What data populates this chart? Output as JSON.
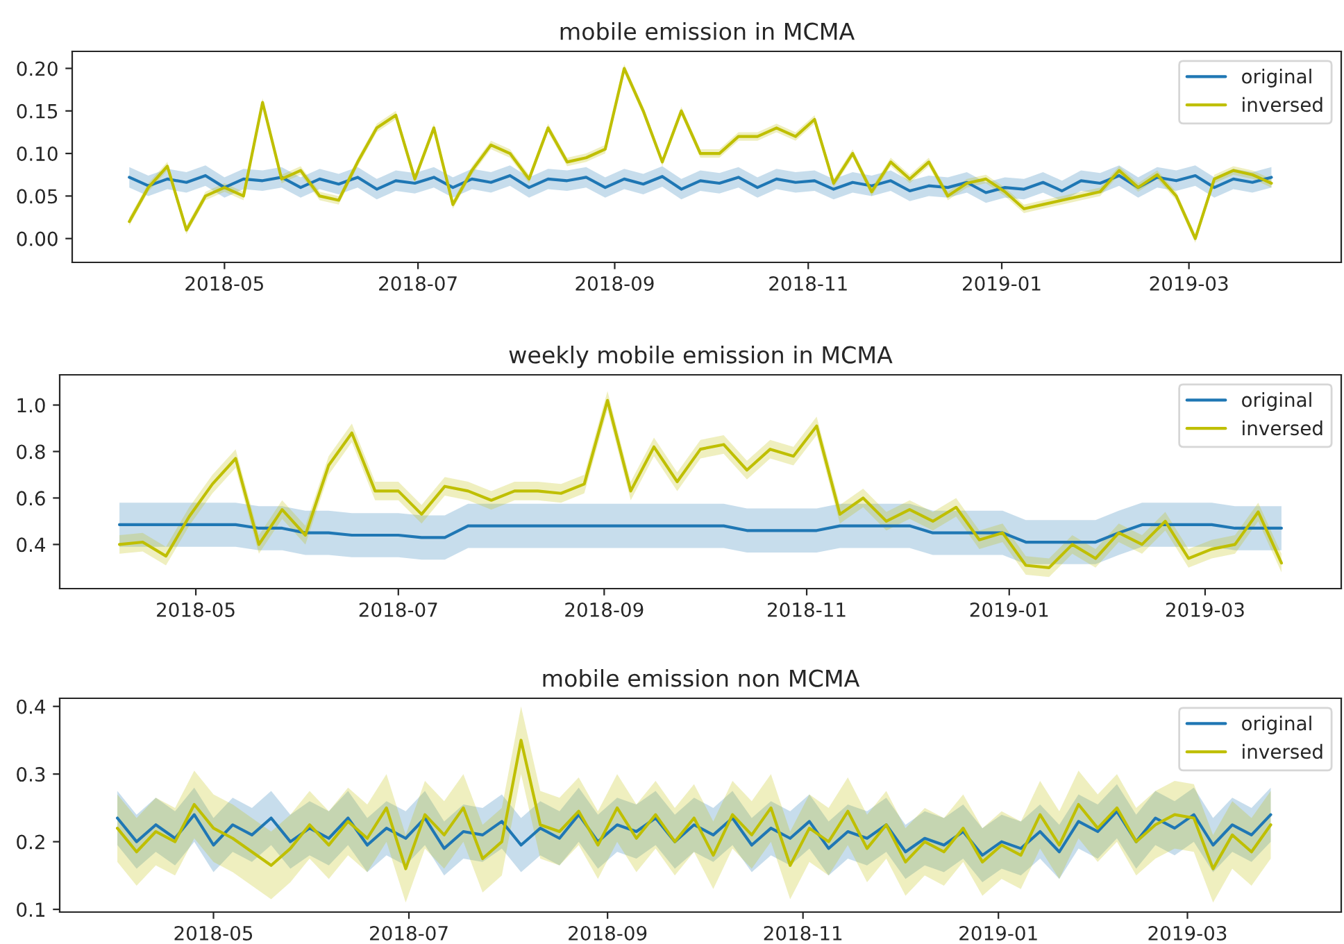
{
  "chart_data": [
    {
      "type": "line",
      "title": "mobile emission in MCMA",
      "legend": "top right",
      "grid": false,
      "x": [
        "2018-04-01",
        "2018-04-07",
        "2018-04-13",
        "2018-04-19",
        "2018-04-25",
        "2018-05-01",
        "2018-05-07",
        "2018-05-13",
        "2018-05-19",
        "2018-05-25",
        "2018-05-31",
        "2018-06-06",
        "2018-06-12",
        "2018-06-18",
        "2018-06-24",
        "2018-06-30",
        "2018-07-06",
        "2018-07-12",
        "2018-07-18",
        "2018-07-24",
        "2018-07-30",
        "2018-08-05",
        "2018-08-11",
        "2018-08-17",
        "2018-08-23",
        "2018-08-29",
        "2018-09-04",
        "2018-09-10",
        "2018-09-16",
        "2018-09-22",
        "2018-09-28",
        "2018-10-04",
        "2018-10-10",
        "2018-10-16",
        "2018-10-22",
        "2018-10-28",
        "2018-11-03",
        "2018-11-09",
        "2018-11-15",
        "2018-11-21",
        "2018-11-27",
        "2018-12-03",
        "2018-12-09",
        "2018-12-15",
        "2018-12-21",
        "2018-12-27",
        "2019-01-02",
        "2019-01-08",
        "2019-01-14",
        "2019-01-20",
        "2019-01-26",
        "2019-02-01",
        "2019-02-07",
        "2019-02-13",
        "2019-02-19",
        "2019-02-25",
        "2019-03-03",
        "2019-03-09",
        "2019-03-15",
        "2019-03-21",
        "2019-03-27"
      ],
      "xlim": [
        "2018-03-14",
        "2019-04-18"
      ],
      "xticks": [
        "2018-05",
        "2018-07",
        "2018-09",
        "2018-11",
        "2019-01",
        "2019-03"
      ],
      "ylim": [
        -0.028,
        0.22
      ],
      "yticks": [
        {
          "value": 0,
          "label": "0.00"
        },
        {
          "value": 0.05,
          "label": "0.05"
        },
        {
          "value": 0.1,
          "label": "0.10"
        },
        {
          "value": 0.15,
          "label": "0.15"
        },
        {
          "value": 0.2,
          "label": "0.20"
        }
      ],
      "series": [
        {
          "name": "original",
          "color": "#1f77b4",
          "values": [
            0.072,
            0.062,
            0.07,
            0.066,
            0.074,
            0.06,
            0.07,
            0.068,
            0.072,
            0.06,
            0.07,
            0.064,
            0.072,
            0.058,
            0.068,
            0.065,
            0.072,
            0.06,
            0.07,
            0.066,
            0.074,
            0.06,
            0.07,
            0.068,
            0.072,
            0.06,
            0.07,
            0.064,
            0.073,
            0.058,
            0.068,
            0.065,
            0.072,
            0.06,
            0.07,
            0.066,
            0.068,
            0.058,
            0.066,
            0.062,
            0.068,
            0.056,
            0.062,
            0.06,
            0.066,
            0.054,
            0.06,
            0.058,
            0.066,
            0.056,
            0.068,
            0.065,
            0.074,
            0.06,
            0.072,
            0.068,
            0.074,
            0.06,
            0.07,
            0.066,
            0.072
          ],
          "lower": [
            0.06,
            0.05,
            0.058,
            0.054,
            0.062,
            0.048,
            0.058,
            0.056,
            0.06,
            0.048,
            0.058,
            0.052,
            0.06,
            0.046,
            0.056,
            0.053,
            0.06,
            0.048,
            0.058,
            0.054,
            0.062,
            0.048,
            0.058,
            0.056,
            0.06,
            0.048,
            0.058,
            0.052,
            0.061,
            0.046,
            0.056,
            0.053,
            0.06,
            0.048,
            0.058,
            0.054,
            0.056,
            0.046,
            0.054,
            0.05,
            0.056,
            0.044,
            0.05,
            0.048,
            0.054,
            0.042,
            0.048,
            0.046,
            0.054,
            0.044,
            0.056,
            0.053,
            0.062,
            0.048,
            0.06,
            0.056,
            0.062,
            0.048,
            0.058,
            0.054,
            0.06
          ],
          "upper": [
            0.084,
            0.074,
            0.082,
            0.078,
            0.086,
            0.072,
            0.082,
            0.08,
            0.084,
            0.072,
            0.082,
            0.076,
            0.084,
            0.07,
            0.08,
            0.077,
            0.084,
            0.072,
            0.082,
            0.078,
            0.086,
            0.072,
            0.082,
            0.08,
            0.084,
            0.072,
            0.082,
            0.076,
            0.085,
            0.07,
            0.08,
            0.077,
            0.084,
            0.072,
            0.082,
            0.078,
            0.08,
            0.07,
            0.078,
            0.074,
            0.08,
            0.068,
            0.074,
            0.072,
            0.078,
            0.066,
            0.072,
            0.07,
            0.078,
            0.068,
            0.08,
            0.077,
            0.086,
            0.072,
            0.084,
            0.08,
            0.086,
            0.072,
            0.082,
            0.078,
            0.084
          ]
        },
        {
          "name": "inversed",
          "color": "#bfbf00",
          "values": [
            0.02,
            0.06,
            0.085,
            0.01,
            0.05,
            0.06,
            0.05,
            0.16,
            0.07,
            0.08,
            0.05,
            0.045,
            0.09,
            0.13,
            0.145,
            0.07,
            0.13,
            0.04,
            0.08,
            0.11,
            0.1,
            0.07,
            0.13,
            0.09,
            0.095,
            0.105,
            0.2,
            0.15,
            0.09,
            0.15,
            0.1,
            0.1,
            0.12,
            0.12,
            0.13,
            0.12,
            0.14,
            0.065,
            0.1,
            0.055,
            0.09,
            0.07,
            0.09,
            0.05,
            0.065,
            0.07,
            0.055,
            0.035,
            0.04,
            0.045,
            0.05,
            0.055,
            0.08,
            0.06,
            0.075,
            0.05,
            0.0,
            0.07,
            0.08,
            0.075,
            0.065
          ],
          "lower": [
            0.015,
            0.055,
            0.08,
            0.005,
            0.045,
            0.055,
            0.045,
            0.155,
            0.065,
            0.075,
            0.045,
            0.04,
            0.085,
            0.125,
            0.14,
            0.065,
            0.125,
            0.035,
            0.075,
            0.105,
            0.095,
            0.065,
            0.125,
            0.085,
            0.09,
            0.1,
            0.195,
            0.145,
            0.085,
            0.145,
            0.095,
            0.095,
            0.115,
            0.115,
            0.125,
            0.115,
            0.135,
            0.06,
            0.095,
            0.05,
            0.085,
            0.065,
            0.085,
            0.045,
            0.06,
            0.065,
            0.05,
            0.03,
            0.035,
            0.04,
            0.045,
            0.05,
            0.075,
            0.055,
            0.07,
            0.045,
            -0.005,
            0.065,
            0.075,
            0.07,
            0.06
          ],
          "upper": [
            0.025,
            0.065,
            0.09,
            0.015,
            0.055,
            0.065,
            0.055,
            0.165,
            0.075,
            0.085,
            0.055,
            0.05,
            0.095,
            0.135,
            0.15,
            0.075,
            0.135,
            0.045,
            0.085,
            0.115,
            0.105,
            0.075,
            0.135,
            0.095,
            0.1,
            0.11,
            0.205,
            0.155,
            0.095,
            0.155,
            0.105,
            0.105,
            0.125,
            0.125,
            0.135,
            0.125,
            0.145,
            0.07,
            0.105,
            0.06,
            0.095,
            0.075,
            0.095,
            0.055,
            0.07,
            0.075,
            0.06,
            0.04,
            0.045,
            0.05,
            0.055,
            0.06,
            0.085,
            0.065,
            0.08,
            0.055,
            0.005,
            0.075,
            0.085,
            0.08,
            0.07
          ]
        }
      ]
    },
    {
      "type": "line",
      "title": "weekly mobile emission in MCMA",
      "legend": "top right",
      "grid": false,
      "x": [
        "2018-04-08",
        "2018-04-15",
        "2018-04-22",
        "2018-04-29",
        "2018-05-06",
        "2018-05-13",
        "2018-05-20",
        "2018-05-27",
        "2018-06-03",
        "2018-06-10",
        "2018-06-17",
        "2018-06-24",
        "2018-07-01",
        "2018-07-08",
        "2018-07-15",
        "2018-07-22",
        "2018-07-29",
        "2018-08-05",
        "2018-08-12",
        "2018-08-19",
        "2018-08-26",
        "2018-09-02",
        "2018-09-09",
        "2018-09-16",
        "2018-09-23",
        "2018-09-30",
        "2018-10-07",
        "2018-10-14",
        "2018-10-21",
        "2018-10-28",
        "2018-11-04",
        "2018-11-11",
        "2018-11-18",
        "2018-11-25",
        "2018-12-02",
        "2018-12-09",
        "2018-12-16",
        "2018-12-23",
        "2018-12-30",
        "2019-01-06",
        "2019-01-13",
        "2019-01-20",
        "2019-01-27",
        "2019-02-03",
        "2019-02-10",
        "2019-02-17",
        "2019-02-24",
        "2019-03-03",
        "2019-03-10",
        "2019-03-17",
        "2019-03-24"
      ],
      "xlim": [
        "2018-03-21",
        "2019-04-11"
      ],
      "xticks": [
        "2018-05",
        "2018-07",
        "2018-09",
        "2018-11",
        "2019-01",
        "2019-03"
      ],
      "ylim": [
        0.21,
        1.13
      ],
      "yticks": [
        0.4,
        0.6,
        0.8,
        {
          "value": 1,
          "label": "1.0"
        }
      ],
      "series": [
        {
          "name": "original",
          "color": "#1f77b4",
          "values": [
            0.485,
            0.485,
            0.485,
            0.485,
            0.485,
            0.485,
            0.47,
            0.47,
            0.45,
            0.45,
            0.44,
            0.44,
            0.44,
            0.43,
            0.43,
            0.48,
            0.48,
            0.48,
            0.48,
            0.48,
            0.48,
            0.48,
            0.48,
            0.48,
            0.48,
            0.48,
            0.48,
            0.46,
            0.46,
            0.46,
            0.46,
            0.48,
            0.48,
            0.48,
            0.48,
            0.45,
            0.45,
            0.45,
            0.45,
            0.41,
            0.41,
            0.41,
            0.41,
            0.45,
            0.485,
            0.485,
            0.485,
            0.485,
            0.47,
            0.47,
            0.47
          ],
          "lower": [
            0.39,
            0.39,
            0.39,
            0.39,
            0.39,
            0.39,
            0.375,
            0.375,
            0.355,
            0.355,
            0.345,
            0.345,
            0.345,
            0.335,
            0.335,
            0.385,
            0.385,
            0.385,
            0.385,
            0.385,
            0.385,
            0.385,
            0.385,
            0.385,
            0.385,
            0.385,
            0.385,
            0.365,
            0.365,
            0.365,
            0.365,
            0.385,
            0.385,
            0.385,
            0.385,
            0.355,
            0.355,
            0.355,
            0.355,
            0.315,
            0.315,
            0.315,
            0.315,
            0.355,
            0.39,
            0.39,
            0.39,
            0.39,
            0.375,
            0.375,
            0.375
          ],
          "upper": [
            0.58,
            0.58,
            0.58,
            0.58,
            0.58,
            0.58,
            0.565,
            0.565,
            0.545,
            0.545,
            0.535,
            0.535,
            0.535,
            0.525,
            0.525,
            0.575,
            0.575,
            0.575,
            0.575,
            0.575,
            0.575,
            0.575,
            0.575,
            0.575,
            0.575,
            0.575,
            0.575,
            0.555,
            0.555,
            0.555,
            0.555,
            0.575,
            0.575,
            0.575,
            0.575,
            0.545,
            0.545,
            0.545,
            0.545,
            0.505,
            0.505,
            0.505,
            0.505,
            0.545,
            0.58,
            0.58,
            0.58,
            0.58,
            0.565,
            0.565,
            0.565
          ]
        },
        {
          "name": "inversed",
          "color": "#bfbf00",
          "values": [
            0.4,
            0.41,
            0.35,
            0.52,
            0.66,
            0.77,
            0.4,
            0.55,
            0.44,
            0.74,
            0.88,
            0.63,
            0.63,
            0.53,
            0.65,
            0.63,
            0.59,
            0.63,
            0.63,
            0.62,
            0.66,
            1.02,
            0.63,
            0.82,
            0.67,
            0.81,
            0.83,
            0.72,
            0.81,
            0.78,
            0.91,
            0.53,
            0.6,
            0.5,
            0.55,
            0.5,
            0.56,
            0.42,
            0.45,
            0.31,
            0.3,
            0.4,
            0.34,
            0.45,
            0.4,
            0.5,
            0.34,
            0.38,
            0.4,
            0.54,
            0.32
          ],
          "lower": [
            0.36,
            0.37,
            0.31,
            0.48,
            0.62,
            0.73,
            0.36,
            0.51,
            0.4,
            0.7,
            0.84,
            0.59,
            0.59,
            0.49,
            0.61,
            0.59,
            0.55,
            0.59,
            0.59,
            0.58,
            0.62,
            0.98,
            0.59,
            0.78,
            0.63,
            0.77,
            0.79,
            0.68,
            0.77,
            0.74,
            0.87,
            0.49,
            0.56,
            0.46,
            0.51,
            0.46,
            0.52,
            0.38,
            0.41,
            0.27,
            0.26,
            0.36,
            0.3,
            0.41,
            0.36,
            0.46,
            0.3,
            0.34,
            0.36,
            0.5,
            0.28
          ],
          "upper": [
            0.44,
            0.45,
            0.39,
            0.56,
            0.7,
            0.81,
            0.44,
            0.59,
            0.48,
            0.78,
            0.92,
            0.67,
            0.67,
            0.57,
            0.69,
            0.67,
            0.63,
            0.67,
            0.67,
            0.66,
            0.7,
            1.06,
            0.67,
            0.86,
            0.71,
            0.85,
            0.87,
            0.76,
            0.85,
            0.82,
            0.95,
            0.57,
            0.64,
            0.54,
            0.59,
            0.54,
            0.6,
            0.46,
            0.49,
            0.35,
            0.34,
            0.44,
            0.38,
            0.49,
            0.44,
            0.54,
            0.38,
            0.42,
            0.44,
            0.58,
            0.36
          ]
        }
      ]
    },
    {
      "type": "line",
      "title": "mobile emission non MCMA",
      "legend": "top right",
      "grid": false,
      "x": [
        "2018-04-01",
        "2018-04-07",
        "2018-04-13",
        "2018-04-19",
        "2018-04-25",
        "2018-05-01",
        "2018-05-07",
        "2018-05-13",
        "2018-05-19",
        "2018-05-25",
        "2018-05-31",
        "2018-06-06",
        "2018-06-12",
        "2018-06-18",
        "2018-06-24",
        "2018-06-30",
        "2018-07-06",
        "2018-07-12",
        "2018-07-18",
        "2018-07-24",
        "2018-07-30",
        "2018-08-05",
        "2018-08-11",
        "2018-08-17",
        "2018-08-23",
        "2018-08-29",
        "2018-09-04",
        "2018-09-10",
        "2018-09-16",
        "2018-09-22",
        "2018-09-28",
        "2018-10-04",
        "2018-10-10",
        "2018-10-16",
        "2018-10-22",
        "2018-10-28",
        "2018-11-03",
        "2018-11-09",
        "2018-11-15",
        "2018-11-21",
        "2018-11-27",
        "2018-12-03",
        "2018-12-09",
        "2018-12-15",
        "2018-12-21",
        "2018-12-27",
        "2019-01-02",
        "2019-01-08",
        "2019-01-14",
        "2019-01-20",
        "2019-01-26",
        "2019-02-01",
        "2019-02-07",
        "2019-02-13",
        "2019-02-19",
        "2019-02-25",
        "2019-03-03",
        "2019-03-09",
        "2019-03-15",
        "2019-03-21",
        "2019-03-27"
      ],
      "xlim": [
        "2018-03-14",
        "2019-04-18"
      ],
      "xticks": [
        "2018-05",
        "2018-07",
        "2018-09",
        "2018-11",
        "2019-01",
        "2019-03"
      ],
      "ylim": [
        0.096,
        0.412
      ],
      "yticks": [
        0.1,
        0.2,
        0.3,
        0.4
      ],
      "series": [
        {
          "name": "original",
          "color": "#1f77b4",
          "values": [
            0.235,
            0.2,
            0.225,
            0.205,
            0.24,
            0.195,
            0.225,
            0.21,
            0.235,
            0.2,
            0.22,
            0.205,
            0.235,
            0.195,
            0.22,
            0.205,
            0.235,
            0.19,
            0.215,
            0.21,
            0.23,
            0.195,
            0.22,
            0.205,
            0.24,
            0.2,
            0.225,
            0.215,
            0.235,
            0.2,
            0.225,
            0.21,
            0.235,
            0.195,
            0.22,
            0.205,
            0.23,
            0.19,
            0.215,
            0.205,
            0.225,
            0.185,
            0.205,
            0.195,
            0.215,
            0.18,
            0.2,
            0.19,
            0.215,
            0.185,
            0.23,
            0.215,
            0.245,
            0.2,
            0.235,
            0.22,
            0.24,
            0.195,
            0.225,
            0.21,
            0.24
          ],
          "lower": [
            0.195,
            0.16,
            0.185,
            0.165,
            0.2,
            0.155,
            0.185,
            0.17,
            0.195,
            0.16,
            0.18,
            0.165,
            0.195,
            0.155,
            0.18,
            0.165,
            0.195,
            0.15,
            0.175,
            0.17,
            0.19,
            0.155,
            0.18,
            0.165,
            0.2,
            0.16,
            0.185,
            0.175,
            0.195,
            0.16,
            0.185,
            0.17,
            0.195,
            0.155,
            0.18,
            0.165,
            0.19,
            0.15,
            0.175,
            0.165,
            0.185,
            0.145,
            0.165,
            0.155,
            0.175,
            0.14,
            0.16,
            0.15,
            0.175,
            0.145,
            0.19,
            0.175,
            0.205,
            0.16,
            0.195,
            0.18,
            0.2,
            0.155,
            0.185,
            0.17,
            0.2
          ],
          "upper": [
            0.275,
            0.24,
            0.265,
            0.245,
            0.28,
            0.235,
            0.265,
            0.25,
            0.275,
            0.24,
            0.26,
            0.245,
            0.275,
            0.235,
            0.26,
            0.245,
            0.275,
            0.23,
            0.255,
            0.25,
            0.27,
            0.235,
            0.26,
            0.245,
            0.28,
            0.24,
            0.265,
            0.255,
            0.275,
            0.24,
            0.265,
            0.25,
            0.275,
            0.235,
            0.26,
            0.245,
            0.27,
            0.23,
            0.255,
            0.245,
            0.265,
            0.225,
            0.245,
            0.235,
            0.255,
            0.22,
            0.24,
            0.23,
            0.255,
            0.225,
            0.27,
            0.255,
            0.285,
            0.24,
            0.275,
            0.26,
            0.28,
            0.235,
            0.265,
            0.25,
            0.28
          ]
        },
        {
          "name": "inversed",
          "color": "#bfbf00",
          "values": [
            0.22,
            0.185,
            0.215,
            0.2,
            0.255,
            0.22,
            0.205,
            0.185,
            0.165,
            0.19,
            0.225,
            0.195,
            0.23,
            0.205,
            0.25,
            0.16,
            0.24,
            0.21,
            0.25,
            0.175,
            0.2,
            0.35,
            0.225,
            0.215,
            0.245,
            0.195,
            0.25,
            0.205,
            0.24,
            0.2,
            0.235,
            0.18,
            0.24,
            0.21,
            0.25,
            0.165,
            0.22,
            0.2,
            0.245,
            0.19,
            0.225,
            0.17,
            0.2,
            0.185,
            0.22,
            0.17,
            0.195,
            0.18,
            0.24,
            0.195,
            0.255,
            0.22,
            0.25,
            0.2,
            0.225,
            0.24,
            0.235,
            0.16,
            0.21,
            0.185,
            0.225
          ],
          "lower": [
            0.17,
            0.135,
            0.165,
            0.15,
            0.205,
            0.17,
            0.155,
            0.135,
            0.115,
            0.14,
            0.175,
            0.145,
            0.18,
            0.155,
            0.2,
            0.11,
            0.19,
            0.16,
            0.2,
            0.125,
            0.15,
            0.3,
            0.175,
            0.165,
            0.195,
            0.145,
            0.2,
            0.155,
            0.19,
            0.15,
            0.185,
            0.13,
            0.19,
            0.16,
            0.2,
            0.115,
            0.17,
            0.15,
            0.195,
            0.14,
            0.175,
            0.12,
            0.15,
            0.135,
            0.17,
            0.12,
            0.145,
            0.13,
            0.19,
            0.145,
            0.205,
            0.17,
            0.2,
            0.15,
            0.175,
            0.19,
            0.185,
            0.11,
            0.16,
            0.135,
            0.175
          ],
          "upper": [
            0.27,
            0.235,
            0.265,
            0.25,
            0.305,
            0.27,
            0.255,
            0.235,
            0.215,
            0.24,
            0.275,
            0.245,
            0.28,
            0.255,
            0.3,
            0.21,
            0.29,
            0.26,
            0.3,
            0.225,
            0.25,
            0.4,
            0.275,
            0.265,
            0.295,
            0.245,
            0.3,
            0.255,
            0.29,
            0.25,
            0.285,
            0.23,
            0.29,
            0.26,
            0.3,
            0.215,
            0.27,
            0.25,
            0.295,
            0.24,
            0.275,
            0.22,
            0.25,
            0.235,
            0.27,
            0.22,
            0.245,
            0.23,
            0.29,
            0.245,
            0.305,
            0.27,
            0.3,
            0.25,
            0.275,
            0.29,
            0.285,
            0.21,
            0.26,
            0.235,
            0.275
          ]
        }
      ]
    }
  ]
}
